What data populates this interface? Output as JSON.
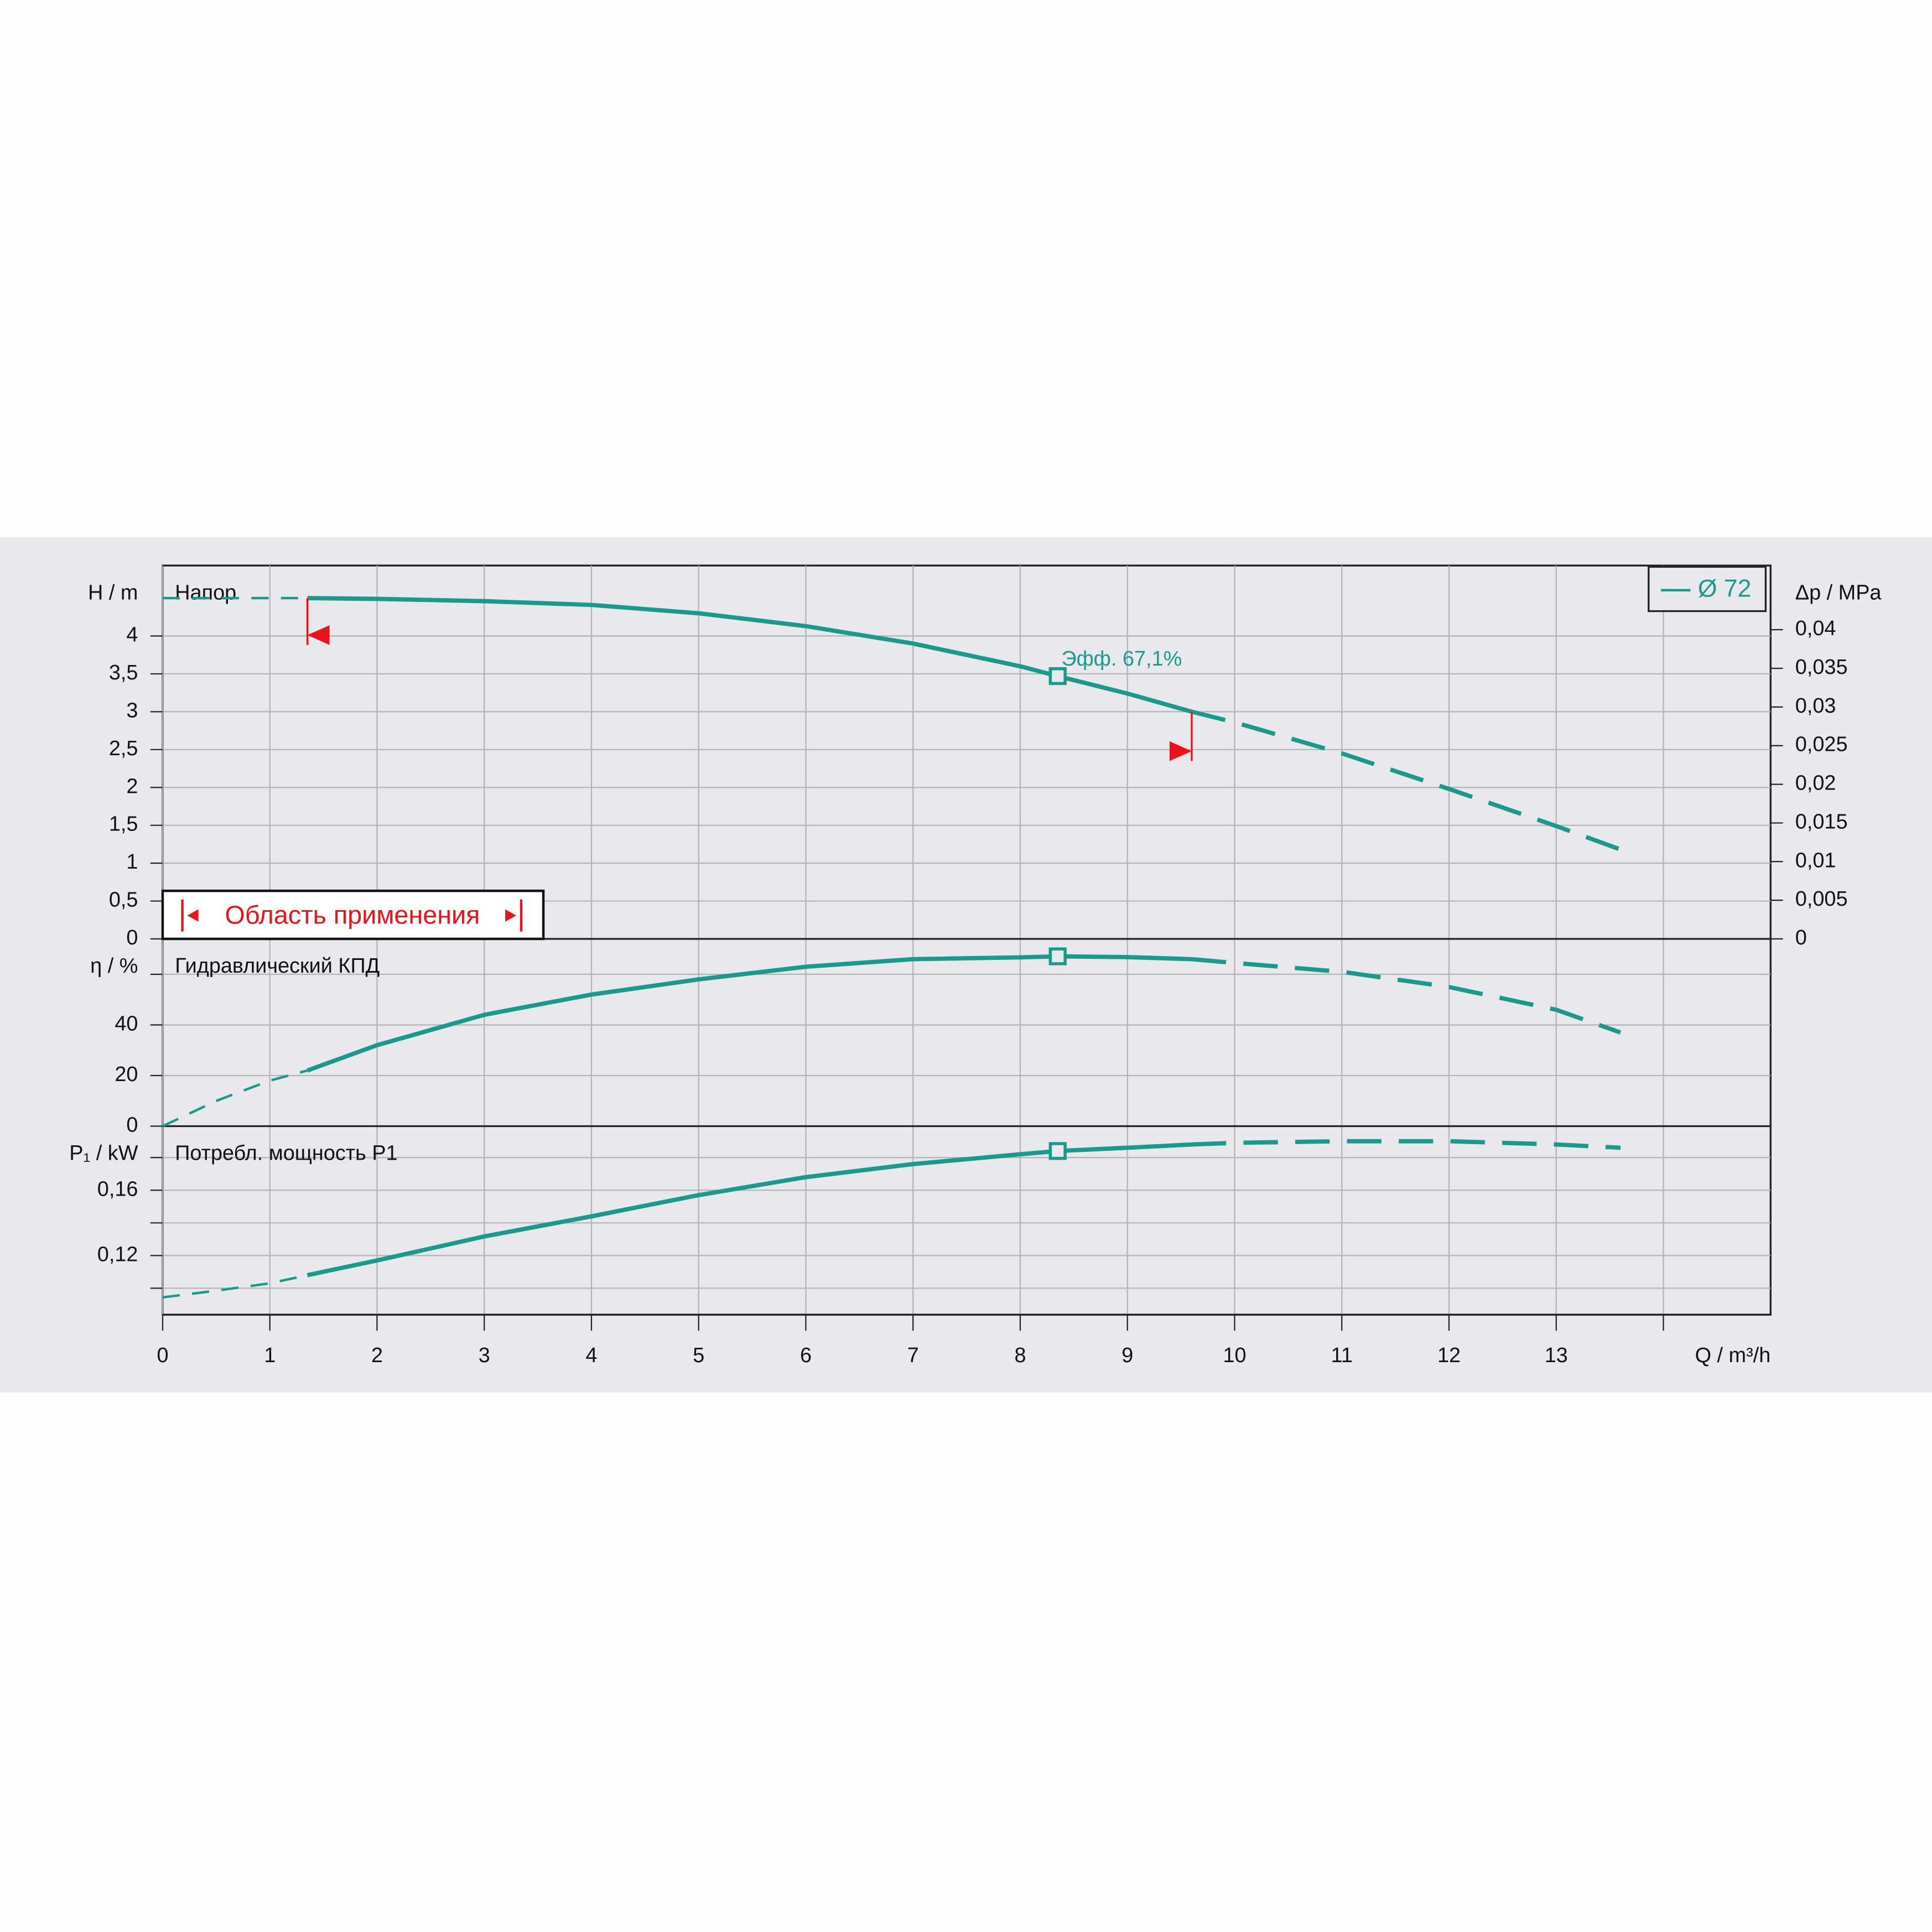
{
  "chart_data": [
    {
      "type": "line",
      "title": "Напор",
      "ylabel": "H / m",
      "y2label": "Δp / MPa",
      "x": [
        0,
        0.5,
        1,
        1.35,
        2,
        3,
        4,
        5,
        6,
        7,
        8,
        8.35,
        9,
        9.6,
        10,
        11,
        12,
        13,
        13.6
      ],
      "xlim": [
        0,
        15
      ],
      "series": [
        {
          "name": "Ø 72",
          "color": "#1b998b",
          "values": [
            4.5,
            4.5,
            4.5,
            4.5,
            4.49,
            4.46,
            4.41,
            4.3,
            4.13,
            3.9,
            3.6,
            3.47,
            3.24,
            3.0,
            2.86,
            2.45,
            1.98,
            1.49,
            1.18
          ]
        }
      ],
      "ylim": [
        0,
        4.93
      ],
      "yticks": [
        0,
        {
          "value": 0.5,
          "label": "0,5"
        },
        1,
        {
          "value": 1.5,
          "label": "1,5"
        },
        2,
        {
          "value": 2.5,
          "label": "2,5"
        },
        3,
        {
          "value": 3.5,
          "label": "3,5"
        },
        4
      ],
      "y2lim": [
        0,
        0.0483
      ],
      "y2ticks": [
        0,
        {
          "value": 0.005,
          "label": "0,005"
        },
        {
          "value": 0.01,
          "label": "0,01"
        },
        {
          "value": 0.015,
          "label": "0,015"
        },
        {
          "value": 0.02,
          "label": "0,02"
        },
        {
          "value": 0.025,
          "label": "0,025"
        },
        {
          "value": 0.03,
          "label": "0,03"
        },
        {
          "value": 0.035,
          "label": "0,035"
        },
        {
          "value": 0.04,
          "label": "0,04"
        }
      ],
      "marker_x": 8.35,
      "annotation": "Эфф.  67,1%",
      "application_range": {
        "label": "Область применения",
        "x": [
          1.35,
          9.6
        ],
        "color": "#e8141c"
      },
      "grid": true
    },
    {
      "type": "line",
      "title": "Гидравлический КПД",
      "ylabel": "η / %",
      "x": [
        0,
        0.5,
        1,
        1.35,
        2,
        3,
        4,
        5,
        6,
        7,
        8,
        8.35,
        9,
        9.6,
        10,
        11,
        12,
        13,
        13.6
      ],
      "xlim": [
        0,
        15
      ],
      "series": [
        {
          "name": "Ø 72",
          "color": "#1b998b",
          "values": [
            0,
            10,
            18,
            22,
            32,
            44,
            52,
            58,
            63,
            66,
            66.7,
            67.1,
            66.8,
            66,
            64.5,
            61,
            55,
            46,
            37
          ]
        }
      ],
      "ylim": [
        0,
        74
      ],
      "yticks": [
        0,
        20,
        40,
        {
          "value": 60,
          "label": null
        }
      ],
      "marker_x": 8.35,
      "grid": true
    },
    {
      "type": "line",
      "title": "Потребл. мощность P1",
      "ylabel": "P₁ / kW",
      "xlabel": "Q / m³/h",
      "x": [
        0,
        0.5,
        1,
        1.35,
        2,
        3,
        4,
        5,
        6,
        7,
        8,
        8.35,
        9,
        9.6,
        10,
        11,
        12,
        13,
        13.6
      ],
      "xlim": [
        0,
        15
      ],
      "xticks": [
        0,
        1,
        2,
        3,
        4,
        5,
        6,
        7,
        8,
        9,
        10,
        11,
        12,
        13,
        {
          "value": 14,
          "label": null
        }
      ],
      "series": [
        {
          "name": "Ø 72",
          "color": "#1b998b",
          "values": [
            0.0944,
            0.0985,
            0.103,
            0.108,
            0.117,
            0.1317,
            0.144,
            0.157,
            0.168,
            0.176,
            0.182,
            0.184,
            0.186,
            0.188,
            0.189,
            0.19,
            0.19,
            0.188,
            0.186
          ]
        }
      ],
      "ylim": [
        0.0838,
        0.1992
      ],
      "yticks": [
        {
          "value": 0.1,
          "label": null
        },
        {
          "value": 0.12,
          "label": "0,12"
        },
        {
          "value": 0.14,
          "label": null
        },
        {
          "value": 0.16,
          "label": "0,16"
        },
        {
          "value": 0.18,
          "label": null
        }
      ],
      "marker_x": 8.35,
      "grid": true
    }
  ]
}
